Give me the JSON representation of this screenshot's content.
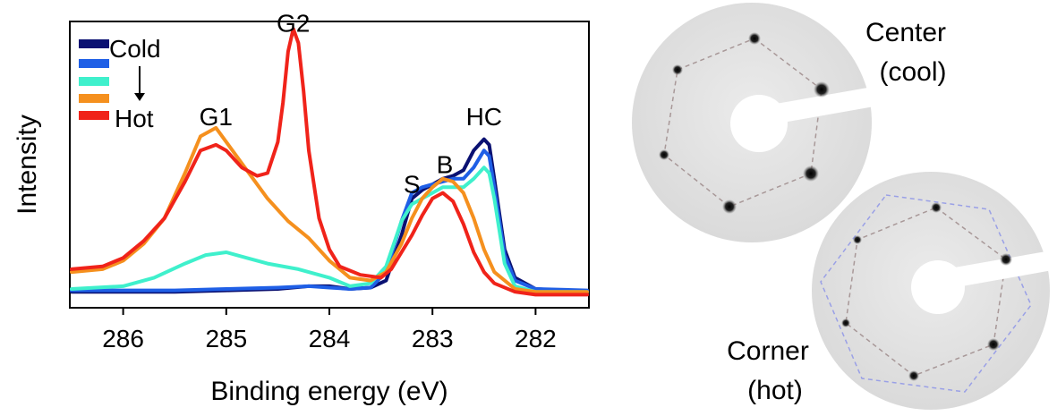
{
  "chart_data": {
    "type": "line",
    "title": "",
    "xlabel": "Binding energy (eV)",
    "ylabel": "Intensity",
    "xlim": [
      286.5,
      281.5
    ],
    "x_reversed": true,
    "ylim": [
      0,
      1.0
    ],
    "grid": false,
    "legend_position": "top-left",
    "x_ticks": [
      286,
      285,
      284,
      283,
      282
    ],
    "legend": {
      "top_label": "Cold",
      "bottom_label": "Hot",
      "arrow": "down"
    },
    "peak_labels": [
      {
        "text": "G1",
        "x": 285.1,
        "y": 0.64
      },
      {
        "text": "G2",
        "x": 284.35,
        "y": 0.97
      },
      {
        "text": "S",
        "x": 283.2,
        "y": 0.4
      },
      {
        "text": "B",
        "x": 282.88,
        "y": 0.47
      },
      {
        "text": "HC",
        "x": 282.5,
        "y": 0.64
      }
    ],
    "series": [
      {
        "color": "#0a1172",
        "points": [
          [
            286.5,
            0.05
          ],
          [
            286.0,
            0.05
          ],
          [
            285.5,
            0.05
          ],
          [
            285.0,
            0.055
          ],
          [
            284.5,
            0.06
          ],
          [
            284.2,
            0.07
          ],
          [
            284.0,
            0.07
          ],
          [
            283.8,
            0.06
          ],
          [
            283.6,
            0.065
          ],
          [
            283.45,
            0.09
          ],
          [
            283.3,
            0.25
          ],
          [
            283.2,
            0.38
          ],
          [
            283.1,
            0.41
          ],
          [
            283.0,
            0.43
          ],
          [
            282.9,
            0.45
          ],
          [
            282.8,
            0.46
          ],
          [
            282.7,
            0.48
          ],
          [
            282.6,
            0.55
          ],
          [
            282.5,
            0.59
          ],
          [
            282.45,
            0.57
          ],
          [
            282.4,
            0.45
          ],
          [
            282.3,
            0.2
          ],
          [
            282.2,
            0.1
          ],
          [
            282.0,
            0.06
          ],
          [
            281.5,
            0.05
          ]
        ]
      },
      {
        "color": "#1f5fe6",
        "points": [
          [
            286.5,
            0.055
          ],
          [
            286.0,
            0.055
          ],
          [
            285.5,
            0.055
          ],
          [
            285.0,
            0.06
          ],
          [
            284.5,
            0.065
          ],
          [
            284.2,
            0.07
          ],
          [
            284.0,
            0.065
          ],
          [
            283.8,
            0.06
          ],
          [
            283.6,
            0.065
          ],
          [
            283.45,
            0.12
          ],
          [
            283.3,
            0.3
          ],
          [
            283.2,
            0.4
          ],
          [
            283.1,
            0.42
          ],
          [
            283.0,
            0.43
          ],
          [
            282.9,
            0.44
          ],
          [
            282.8,
            0.45
          ],
          [
            282.7,
            0.45
          ],
          [
            282.6,
            0.49
          ],
          [
            282.5,
            0.55
          ],
          [
            282.45,
            0.53
          ],
          [
            282.4,
            0.42
          ],
          [
            282.3,
            0.18
          ],
          [
            282.2,
            0.09
          ],
          [
            282.0,
            0.06
          ],
          [
            281.5,
            0.055
          ]
        ]
      },
      {
        "color": "#3ff0cc",
        "points": [
          [
            286.5,
            0.06
          ],
          [
            286.0,
            0.07
          ],
          [
            285.7,
            0.1
          ],
          [
            285.4,
            0.15
          ],
          [
            285.2,
            0.18
          ],
          [
            285.0,
            0.19
          ],
          [
            284.8,
            0.17
          ],
          [
            284.6,
            0.15
          ],
          [
            284.3,
            0.13
          ],
          [
            284.0,
            0.1
          ],
          [
            283.8,
            0.07
          ],
          [
            283.6,
            0.08
          ],
          [
            283.45,
            0.14
          ],
          [
            283.3,
            0.3
          ],
          [
            283.2,
            0.36
          ],
          [
            283.1,
            0.38
          ],
          [
            283.0,
            0.4
          ],
          [
            282.9,
            0.42
          ],
          [
            282.8,
            0.42
          ],
          [
            282.7,
            0.42
          ],
          [
            282.6,
            0.45
          ],
          [
            282.5,
            0.49
          ],
          [
            282.45,
            0.47
          ],
          [
            282.4,
            0.38
          ],
          [
            282.3,
            0.15
          ],
          [
            282.2,
            0.07
          ],
          [
            282.0,
            0.05
          ],
          [
            281.5,
            0.05
          ]
        ]
      },
      {
        "color": "#f5901e",
        "points": [
          [
            286.5,
            0.12
          ],
          [
            286.2,
            0.13
          ],
          [
            286.0,
            0.16
          ],
          [
            285.8,
            0.22
          ],
          [
            285.6,
            0.31
          ],
          [
            285.4,
            0.47
          ],
          [
            285.25,
            0.6
          ],
          [
            285.1,
            0.63
          ],
          [
            285.0,
            0.58
          ],
          [
            284.8,
            0.48
          ],
          [
            284.6,
            0.38
          ],
          [
            284.4,
            0.3
          ],
          [
            284.2,
            0.24
          ],
          [
            284.0,
            0.16
          ],
          [
            283.8,
            0.1
          ],
          [
            283.6,
            0.09
          ],
          [
            283.45,
            0.12
          ],
          [
            283.3,
            0.22
          ],
          [
            283.2,
            0.31
          ],
          [
            283.1,
            0.38
          ],
          [
            283.0,
            0.42
          ],
          [
            282.9,
            0.45
          ],
          [
            282.8,
            0.44
          ],
          [
            282.7,
            0.4
          ],
          [
            282.6,
            0.31
          ],
          [
            282.5,
            0.2
          ],
          [
            282.4,
            0.12
          ],
          [
            282.2,
            0.06
          ],
          [
            282.0,
            0.05
          ],
          [
            281.5,
            0.05
          ]
        ]
      },
      {
        "color": "#f0231a",
        "points": [
          [
            286.5,
            0.13
          ],
          [
            286.2,
            0.14
          ],
          [
            286.0,
            0.17
          ],
          [
            285.8,
            0.23
          ],
          [
            285.6,
            0.31
          ],
          [
            285.4,
            0.44
          ],
          [
            285.25,
            0.55
          ],
          [
            285.1,
            0.57
          ],
          [
            285.0,
            0.55
          ],
          [
            284.85,
            0.49
          ],
          [
            284.7,
            0.46
          ],
          [
            284.6,
            0.47
          ],
          [
            284.5,
            0.58
          ],
          [
            284.45,
            0.72
          ],
          [
            284.4,
            0.9
          ],
          [
            284.35,
            0.98
          ],
          [
            284.3,
            0.93
          ],
          [
            284.25,
            0.76
          ],
          [
            284.2,
            0.55
          ],
          [
            284.1,
            0.31
          ],
          [
            284.0,
            0.2
          ],
          [
            283.9,
            0.14
          ],
          [
            283.7,
            0.11
          ],
          [
            283.5,
            0.1
          ],
          [
            283.4,
            0.13
          ],
          [
            283.3,
            0.19
          ],
          [
            283.2,
            0.25
          ],
          [
            283.1,
            0.32
          ],
          [
            283.0,
            0.38
          ],
          [
            282.9,
            0.4
          ],
          [
            282.8,
            0.37
          ],
          [
            282.7,
            0.29
          ],
          [
            282.6,
            0.19
          ],
          [
            282.5,
            0.12
          ],
          [
            282.4,
            0.08
          ],
          [
            282.2,
            0.05
          ],
          [
            282.0,
            0.04
          ],
          [
            281.5,
            0.04
          ]
        ]
      }
    ]
  },
  "images": [
    {
      "label_line1": "Center",
      "label_line2": "(cool)"
    },
    {
      "label_line1": "Corner",
      "label_line2": "(hot)"
    }
  ]
}
